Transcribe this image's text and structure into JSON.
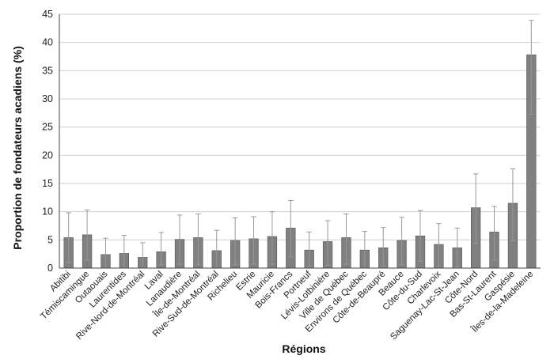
{
  "chart_data": {
    "type": "bar",
    "xlabel": "Régions",
    "ylabel": "Proportion de fondateurs acadiens (%)",
    "ylim": [
      0,
      45
    ],
    "yticks": [
      0,
      5,
      10,
      15,
      20,
      25,
      30,
      35,
      40,
      45
    ],
    "grid": true,
    "legend": "none",
    "colors": {
      "bar": "#808080",
      "bar_edge": "#555555",
      "error_bar": "#999999",
      "grid": "#d0d0d0",
      "axis": "#444444"
    },
    "categories": [
      "Abitibi",
      "Témiscamingue",
      "Outaouais",
      "Laurentides",
      "Rive-Nord-de-Montréal",
      "Laval",
      "Lanaudière",
      "Île-de-Montréal",
      "Rive-Sud-de-Montréal",
      "Richelieu",
      "Estrie",
      "Mauricie",
      "Bois-Francs",
      "Portneuf",
      "Lévis-Lotbinière",
      "Ville de Québec",
      "Environs de Québec",
      "Côte-de-Beaupré",
      "Beauce",
      "Côte-du-Sud",
      "Charlevoix",
      "Saguenay-Lac-St-Jean",
      "Côte-Nord",
      "Bas-St-Laurent",
      "Gaspésie",
      "Îles-de-la-Madeleine"
    ],
    "values": [
      5.4,
      5.9,
      2.4,
      2.6,
      1.9,
      2.9,
      5.1,
      5.4,
      3.1,
      4.9,
      5.2,
      5.6,
      7.1,
      3.2,
      4.7,
      5.4,
      3.2,
      3.6,
      4.9,
      5.7,
      4.2,
      3.6,
      10.7,
      6.4,
      11.5,
      37.8
    ],
    "error_low": [
      1.0,
      1.4,
      0.0,
      0.0,
      0.0,
      0.6,
      0.7,
      0.6,
      0.0,
      0.6,
      0.7,
      0.7,
      2.0,
      0.3,
      0.5,
      0.7,
      0.0,
      0.3,
      0.6,
      1.2,
      0.3,
      0.2,
      4.4,
      1.4,
      4.9,
      27.3
    ],
    "error_high": [
      9.8,
      10.3,
      5.3,
      5.8,
      4.5,
      6.3,
      9.4,
      9.6,
      6.7,
      8.9,
      9.1,
      10.0,
      12.0,
      6.4,
      8.4,
      9.6,
      6.5,
      7.2,
      9.0,
      10.2,
      7.9,
      7.1,
      16.7,
      10.9,
      17.6,
      43.9
    ]
  }
}
